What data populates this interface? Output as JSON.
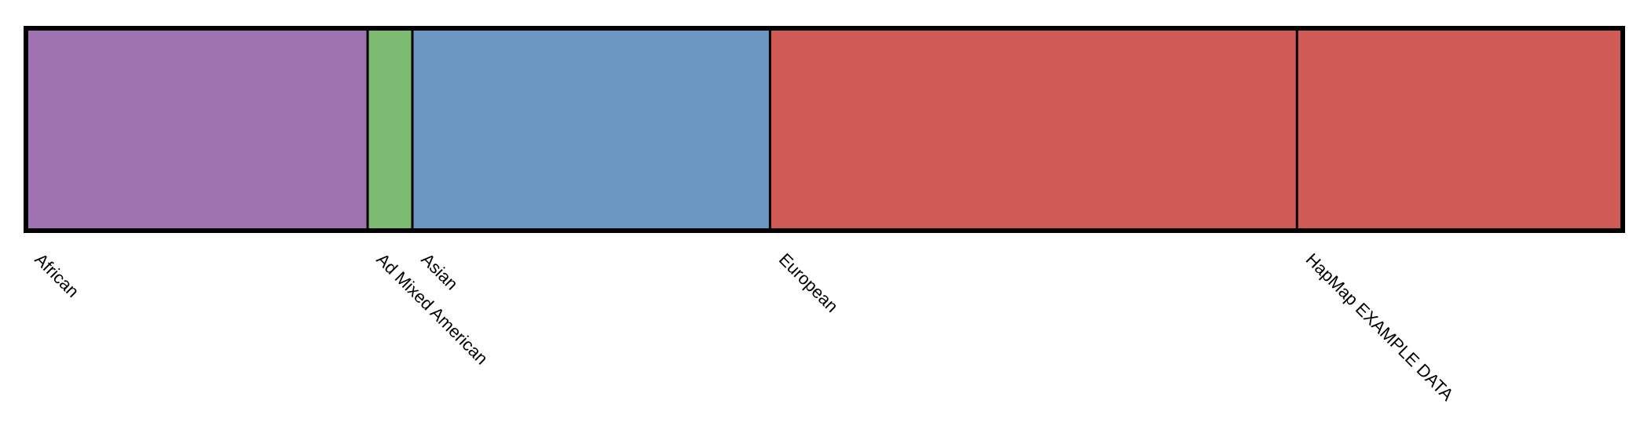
{
  "chart_data": {
    "type": "stacked-bar",
    "y_range": [
      0,
      1
    ],
    "grid": false,
    "legend": "none",
    "groups": [
      {
        "label": "African",
        "share": 0.214,
        "components": [
          {
            "color": "#9e73b0",
            "value": 1.0
          }
        ]
      },
      {
        "label": "Ad Mixed American",
        "share": 0.028,
        "components": [
          {
            "color": "#7dbb72",
            "value": 1.0
          }
        ]
      },
      {
        "label": "Asian",
        "share": 0.224,
        "components": [
          {
            "color": "#6b97c2",
            "value": 1.0
          }
        ]
      },
      {
        "label": "European",
        "share": 0.33,
        "components": [
          {
            "color": "#d05a55",
            "value": 1.0
          }
        ]
      },
      {
        "label": "HapMap EXAMPLE DATA",
        "share": 0.204,
        "components": [
          {
            "color": "#7dbb72",
            "value": 0.01
          },
          {
            "color": "#d05a55",
            "value": 0.99
          }
        ]
      }
    ]
  }
}
